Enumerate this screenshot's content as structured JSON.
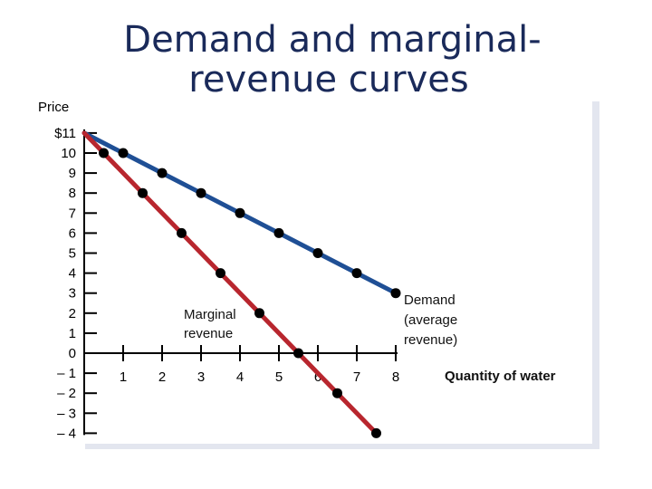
{
  "chart_data": {
    "type": "line",
    "title_line1": "Demand and marginal-",
    "title_line2": "revenue curves",
    "ylabel": "Price",
    "xlabel": "Quantity of water",
    "ylim": [
      -4,
      11
    ],
    "xlim": [
      0,
      8
    ],
    "y_tick_labels": [
      {
        "value": 11,
        "label": "$11"
      },
      {
        "value": 10,
        "label": "10"
      },
      {
        "value": 9,
        "label": "9"
      },
      {
        "value": 8,
        "label": "8"
      },
      {
        "value": 7,
        "label": "7"
      },
      {
        "value": 6,
        "label": "6"
      },
      {
        "value": 5,
        "label": "5"
      },
      {
        "value": 4,
        "label": "4"
      },
      {
        "value": 3,
        "label": "3"
      },
      {
        "value": 2,
        "label": "2"
      },
      {
        "value": 1,
        "label": "1"
      },
      {
        "value": 0,
        "label": "0"
      },
      {
        "value": -1,
        "label": "– 1"
      },
      {
        "value": -2,
        "label": "– 2"
      },
      {
        "value": -3,
        "label": "– 3"
      },
      {
        "value": -4,
        "label": "– 4"
      }
    ],
    "x_tick_labels": [
      {
        "value": 1,
        "label": "1"
      },
      {
        "value": 2,
        "label": "2"
      },
      {
        "value": 3,
        "label": "3"
      },
      {
        "value": 4,
        "label": "4"
      },
      {
        "value": 5,
        "label": "5"
      },
      {
        "value": 6,
        "label": "6"
      },
      {
        "value": 7,
        "label": "7"
      },
      {
        "value": 8,
        "label": "8"
      }
    ],
    "series": [
      {
        "name": "Demand (average revenue)",
        "label_lines": [
          "Demand",
          "(average",
          "revenue)"
        ],
        "color": "#1f4f95",
        "points": [
          [
            0,
            11
          ],
          [
            1,
            10
          ],
          [
            2,
            9
          ],
          [
            3,
            8
          ],
          [
            4,
            7
          ],
          [
            5,
            6
          ],
          [
            6,
            5
          ],
          [
            7,
            4
          ],
          [
            8,
            3
          ]
        ]
      },
      {
        "name": "Marginal revenue",
        "label_lines": [
          "Marginal",
          "revenue"
        ],
        "color": "#b8262e",
        "points": [
          [
            0,
            11
          ],
          [
            0.5,
            10
          ],
          [
            1.5,
            8
          ],
          [
            2.5,
            6
          ],
          [
            3.5,
            4
          ],
          [
            4.5,
            2
          ],
          [
            5.5,
            0
          ],
          [
            6.5,
            -2
          ],
          [
            7.5,
            -4
          ]
        ]
      }
    ],
    "grid": false
  }
}
